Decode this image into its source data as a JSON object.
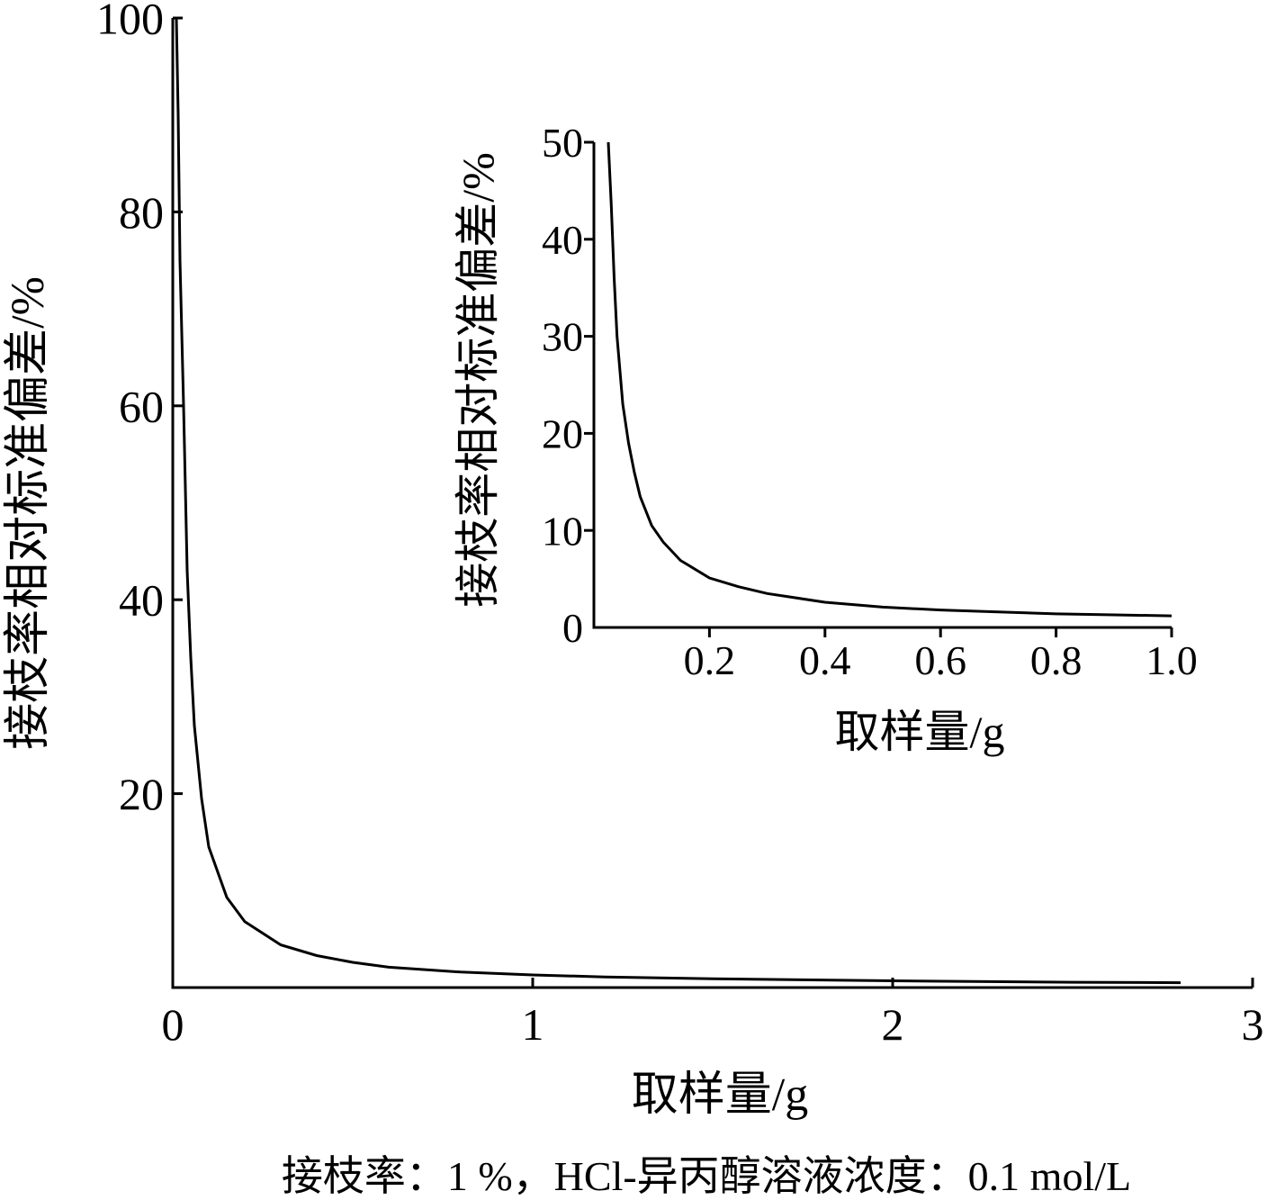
{
  "chart_data": [
    {
      "type": "line",
      "xlabel": "取样量/g",
      "ylabel": "接枝率相对标准偏差/%",
      "xlim": [
        0,
        3
      ],
      "ylim": [
        0,
        100
      ],
      "x_ticks": [
        0,
        1,
        2,
        3
      ],
      "x_tick_labels": [
        "0",
        "1",
        "2",
        "3"
      ],
      "y_ticks": [
        20,
        40,
        60,
        80,
        100
      ],
      "y_tick_labels": [
        "20",
        "40",
        "60",
        "80",
        "100"
      ],
      "grid": false,
      "series": [
        {
          "x": [
            0.01,
            0.015,
            0.02,
            0.03,
            0.04,
            0.05,
            0.06,
            0.08,
            0.1,
            0.15,
            0.2,
            0.3,
            0.4,
            0.5,
            0.6,
            0.8,
            1.0,
            1.2,
            1.5,
            2.0,
            2.5,
            2.8
          ],
          "y": [
            100,
            90,
            75,
            60,
            43,
            34,
            27,
            19.5,
            14.5,
            9.3,
            6.8,
            4.4,
            3.3,
            2.6,
            2.1,
            1.6,
            1.3,
            1.1,
            0.9,
            0.7,
            0.55,
            0.5
          ]
        }
      ]
    },
    {
      "type": "line",
      "xlabel": "取样量/g",
      "ylabel": "接枝率相对标准偏差/%",
      "xlim": [
        0,
        1.0
      ],
      "ylim": [
        0,
        50
      ],
      "x_ticks": [
        0.2,
        0.4,
        0.6,
        0.8,
        1.0
      ],
      "x_tick_labels": [
        "0.2",
        "0.4",
        "0.6",
        "0.8",
        "1.0"
      ],
      "y_ticks": [
        0,
        10,
        20,
        30,
        40,
        50
      ],
      "y_tick_labels": [
        "0",
        "10",
        "20",
        "30",
        "40",
        "50"
      ],
      "grid": false,
      "series": [
        {
          "x": [
            0.025,
            0.03,
            0.035,
            0.04,
            0.05,
            0.06,
            0.07,
            0.08,
            0.1,
            0.12,
            0.15,
            0.2,
            0.25,
            0.3,
            0.4,
            0.5,
            0.6,
            0.7,
            0.8,
            0.9,
            1.0
          ],
          "y": [
            50,
            43.5,
            36,
            30,
            23,
            19,
            16,
            13.5,
            10.5,
            8.8,
            6.9,
            5.1,
            4.2,
            3.5,
            2.6,
            2.1,
            1.8,
            1.6,
            1.4,
            1.3,
            1.2
          ]
        }
      ]
    }
  ],
  "caption": "接枝率：1 %，HCl-异丙醇溶液浓度：0.1 mol/L"
}
